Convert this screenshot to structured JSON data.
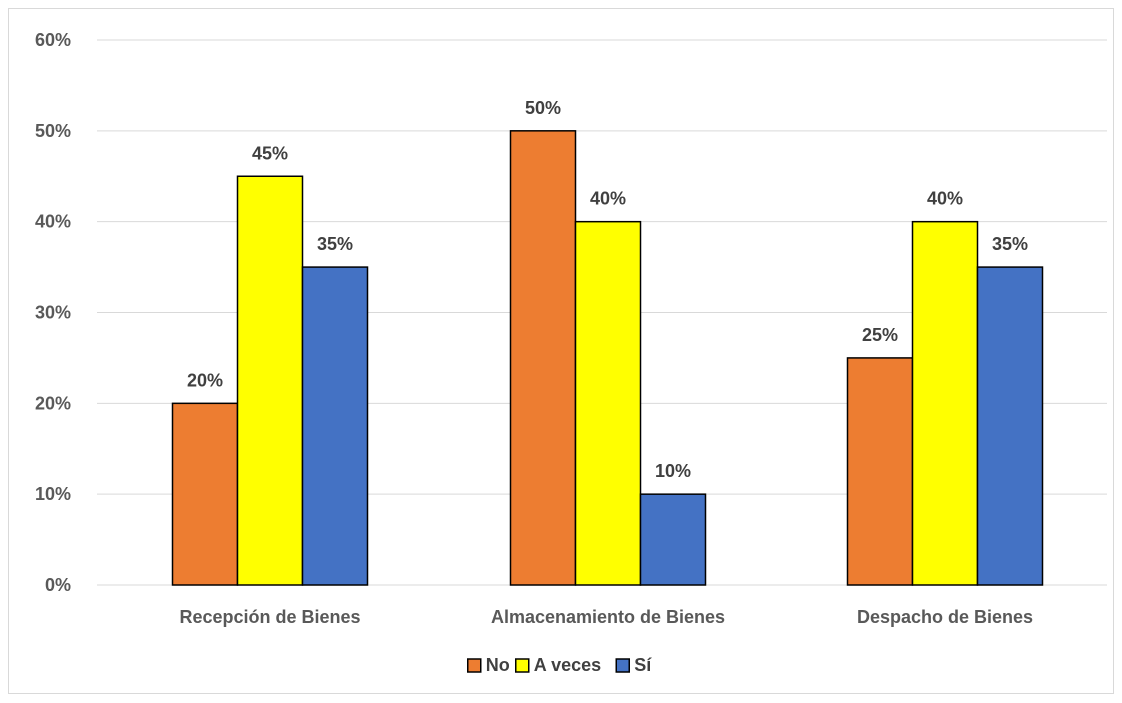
{
  "chart_data": {
    "type": "bar",
    "categories": [
      "Recepción de Bienes",
      "Almacenamiento de Bienes",
      "Despacho de Bienes"
    ],
    "series": [
      {
        "name": "No",
        "color": "#ED7D31",
        "values": [
          20,
          50,
          25
        ]
      },
      {
        "name": "A veces",
        "color": "#FFFF00",
        "values": [
          45,
          40,
          40
        ]
      },
      {
        "name": "Sí",
        "color": "#4472C4",
        "values": [
          35,
          10,
          35
        ]
      }
    ],
    "value_suffix": "%",
    "y_ticks": [
      0,
      10,
      20,
      30,
      40,
      50,
      60
    ],
    "y_tick_labels": [
      "0%",
      "10%",
      "20%",
      "30%",
      "40%",
      "50%",
      "60%"
    ],
    "ylim": [
      0,
      60
    ],
    "grid": true,
    "legend_position": "bottom",
    "title": "",
    "xlabel": "",
    "ylabel": ""
  }
}
